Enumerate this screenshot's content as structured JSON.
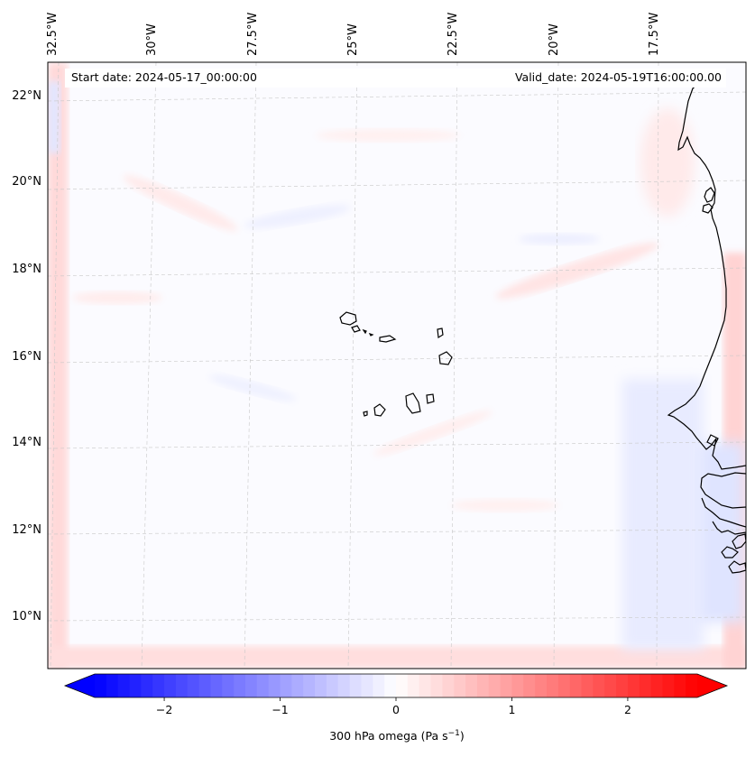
{
  "map": {
    "top_labels": [
      "32.5°W",
      "30°W",
      "27.5°W",
      "25°W",
      "22.5°W",
      "20°W",
      "17.5°W"
    ],
    "left_labels": [
      "22°N",
      "20°N",
      "18°N",
      "16°N",
      "14°N",
      "12°N",
      "10°N"
    ],
    "start_date": "Start date: 2024-05-17_00:00:00",
    "valid_date": "Valid_date: 2024-05-19T16:00:00.00"
  },
  "colorbar": {
    "ticks": [
      "−2",
      "−1",
      "0",
      "1",
      "2"
    ],
    "tick_values": [
      -2,
      -1,
      0,
      1,
      2
    ],
    "range": [
      -2.6,
      2.6
    ],
    "label_main": "300 hPa omega (Pa s",
    "label_exp": "−1",
    "label_close": ")",
    "colors": {
      "negative": "#0000ff",
      "zero": "#ffffff",
      "positive": "#ff0000"
    }
  }
}
